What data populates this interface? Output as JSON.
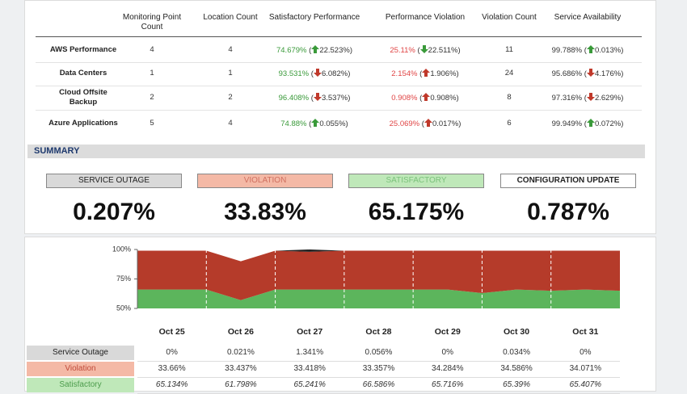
{
  "top_table": {
    "columns": [
      "Monitoring Point Count",
      "Location Count",
      "Satisfactory Performance",
      "Performance Violation",
      "Violation Count",
      "Service Availability"
    ],
    "rows": [
      {
        "name": "AWS Performance",
        "cells": [
          "4",
          "4",
          {
            "value": "74.679%",
            "change": "22.523%",
            "arrow": "up",
            "arrow_color": "#3a9a3a"
          },
          {
            "value": "25.11%",
            "change": "22.511%",
            "arrow": "down",
            "arrow_color": "#3a9a3a"
          },
          "11",
          {
            "value": "99.788%",
            "change": "0.013%",
            "arrow": "up",
            "arrow_color": "#3a9a3a"
          }
        ]
      },
      {
        "name": "Data Centers",
        "cells": [
          "1",
          "1",
          {
            "value": "93.531%",
            "change": "6.082%",
            "arrow": "down",
            "arrow_color": "#c0392b"
          },
          {
            "value": "2.154%",
            "change": "1.906%",
            "arrow": "up",
            "arrow_color": "#c0392b"
          },
          "24",
          {
            "value": "95.686%",
            "change": "4.176%",
            "arrow": "down",
            "arrow_color": "#c0392b"
          }
        ]
      },
      {
        "name": "Cloud Offsite Backup",
        "cells": [
          "2",
          "2",
          {
            "value": "96.408%",
            "change": "3.537%",
            "arrow": "down",
            "arrow_color": "#c0392b"
          },
          {
            "value": "0.908%",
            "change": "0.908%",
            "arrow": "up",
            "arrow_color": "#c0392b"
          },
          "8",
          {
            "value": "97.316%",
            "change": "2.629%",
            "arrow": "down",
            "arrow_color": "#c0392b"
          }
        ]
      },
      {
        "name": "Azure Applications",
        "cells": [
          "5",
          "4",
          {
            "value": "74.88%",
            "change": "0.055%",
            "arrow": "up",
            "arrow_color": "#3a9a3a"
          },
          {
            "value": "25.069%",
            "change": "0.017%",
            "arrow": "up",
            "arrow_color": "#c0392b"
          },
          "6",
          {
            "value": "99.949%",
            "change": "0.072%",
            "arrow": "up",
            "arrow_color": "#3a9a3a"
          }
        ]
      }
    ]
  },
  "summary": {
    "title": "SUMMARY",
    "items": [
      {
        "label": "SERVICE OUTAGE",
        "value": "0.207%",
        "color": "#d9d9d9"
      },
      {
        "label": "VIOLATION",
        "value": "33.83%",
        "color": "#f4b9a6"
      },
      {
        "label": "SATISFACTORY",
        "value": "65.175%",
        "color": "#bfe8b9"
      },
      {
        "label": "CONFIGURATION UPDATE",
        "value": "0.787%",
        "color": "#ffffff"
      }
    ]
  },
  "chart_data": {
    "type": "area",
    "x": [
      0,
      0.5,
      1,
      1.5,
      2,
      2.5,
      3,
      3.5,
      4,
      4.5,
      5,
      5.5,
      6,
      6.5,
      7
    ],
    "xlim": [
      0,
      7
    ],
    "ylim": [
      50,
      100
    ],
    "yticks": [
      {
        "value": 100,
        "label": "100%"
      },
      {
        "value": 75,
        "label": "75%"
      },
      {
        "value": 50,
        "label": "50%"
      }
    ],
    "series": [
      {
        "name": "Satisfactory",
        "color": "#5cb55c",
        "values": [
          66,
          66,
          66,
          57,
          66,
          66,
          66,
          66,
          66,
          66,
          63,
          66,
          65,
          66,
          65
        ]
      },
      {
        "name": "Violation",
        "color": "#b53b2a",
        "values": [
          33,
          33,
          33,
          33,
          33,
          32,
          33,
          33,
          33,
          33,
          36,
          33,
          34,
          33,
          34
        ]
      },
      {
        "name": "Service Outage",
        "color": "#222222",
        "values": [
          0,
          0,
          0,
          0,
          0,
          2,
          0,
          0,
          0,
          0,
          0,
          0,
          0,
          0,
          0
        ]
      }
    ]
  },
  "daily_table": {
    "columns": [
      "Oct 25",
      "Oct 26",
      "Oct 27",
      "Oct 28",
      "Oct 29",
      "Oct 30",
      "Oct 31"
    ],
    "rows": [
      {
        "name": "Service Outage",
        "color": "#d9d9d9",
        "cells": [
          "0%",
          "0.021%",
          "1.341%",
          "0.056%",
          "0%",
          "0.034%",
          "0%"
        ]
      },
      {
        "name": "Violation",
        "color": "#f4b9a6",
        "cells": [
          "33.66%",
          "33.437%",
          "33.418%",
          "33.357%",
          "34.284%",
          "34.586%",
          "34.071%"
        ]
      },
      {
        "name": "Satisfactory",
        "color": "#bfe8b9",
        "cells": [
          "65.134%",
          "61.798%",
          "65.241%",
          "66.586%",
          "65.716%",
          "65.39%",
          "65.407%"
        ]
      }
    ]
  }
}
